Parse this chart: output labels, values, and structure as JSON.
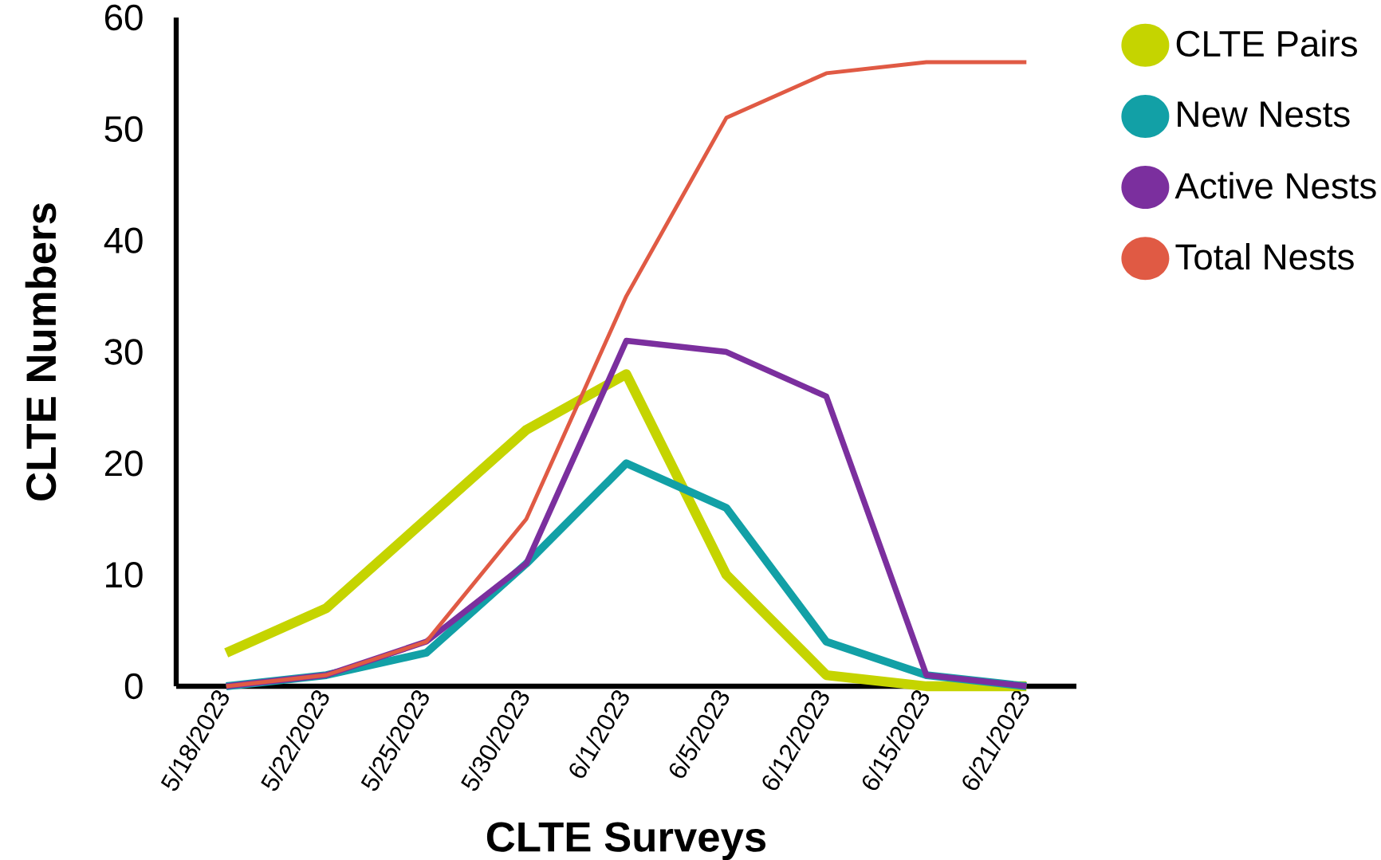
{
  "chart_data": {
    "type": "line",
    "xlabel": "CLTE Surveys",
    "ylabel": "CLTE Numbers",
    "categories": [
      "5/18/2023",
      "5/22/2023",
      "5/25/2023",
      "5/30/2023",
      "6/1/2023",
      "6/5/2023",
      "6/12/2023",
      "6/15/2023",
      "6/21/2023"
    ],
    "series": [
      {
        "name": "CLTE Pairs",
        "color": "#c5d400",
        "values": [
          3,
          7,
          15,
          23,
          28,
          10,
          1,
          0,
          0
        ]
      },
      {
        "name": "New Nests",
        "color": "#12a0a6",
        "values": [
          0,
          1,
          3,
          11,
          20,
          16,
          4,
          1,
          0
        ]
      },
      {
        "name": "Active Nests",
        "color": "#7b2f9e",
        "values": [
          0,
          1,
          4,
          11,
          31,
          30,
          26,
          1,
          0
        ]
      },
      {
        "name": "Total Nests",
        "color": "#e05a44",
        "values": [
          0,
          1,
          4,
          15,
          35,
          51,
          55,
          56,
          56
        ]
      }
    ],
    "ylim": [
      0,
      60
    ],
    "yticks": [
      0,
      10,
      20,
      30,
      40,
      50,
      60
    ],
    "legend": "top right",
    "grid": false,
    "marker": "none",
    "line_style": "solid"
  }
}
